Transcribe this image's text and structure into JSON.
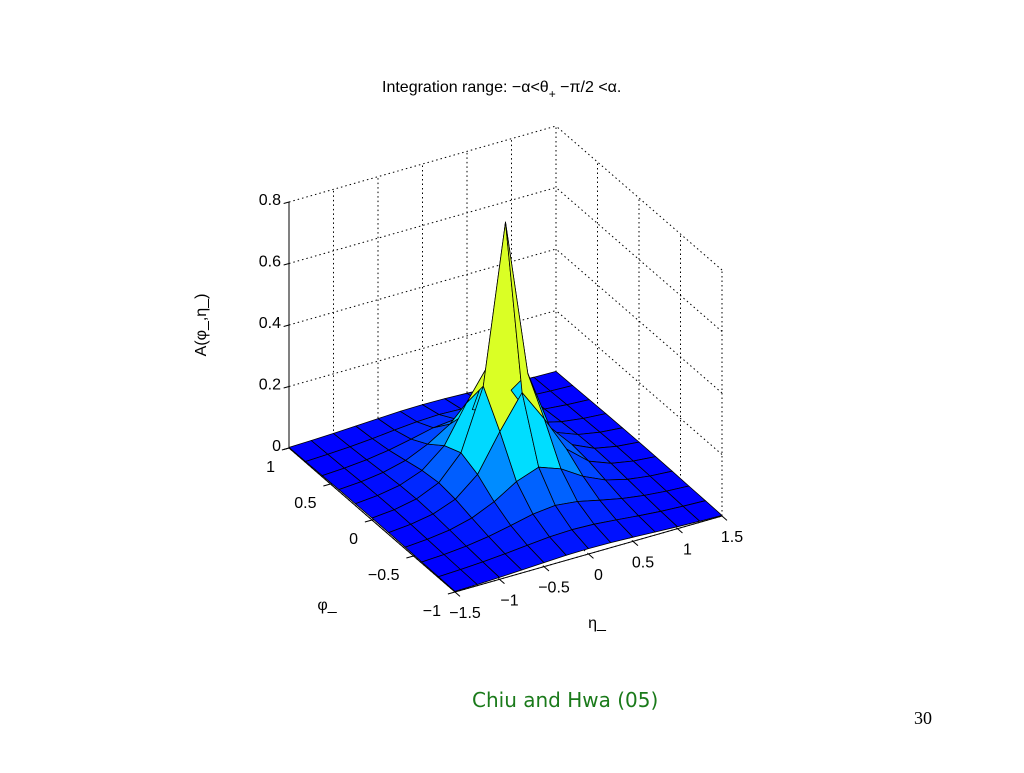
{
  "slide": {
    "caption": "Chiu and Hwa (05)",
    "page_number": "30"
  },
  "chart_data": {
    "type": "surface3d",
    "title": "Integration range: −α<θ",
    "title_sub": "+",
    "title_tail": " −π/2 <α.",
    "xlabel": "η_",
    "ylabel": "φ_",
    "zlabel": "A(φ_,η_)",
    "xlim": [
      -1.5,
      1.5
    ],
    "ylim": [
      -1,
      1
    ],
    "zlim": [
      0,
      0.8
    ],
    "x_ticks": [
      "−1.5",
      "−1",
      "−0.5",
      "0",
      "0.5",
      "1",
      "1.5"
    ],
    "y_ticks": [
      "−1",
      "−0.5",
      "0",
      "0.5",
      "1"
    ],
    "z_ticks": [
      "0",
      "0.2",
      "0.4",
      "0.6",
      "0.8"
    ],
    "grid": true,
    "colormap": "jet",
    "peak": {
      "x": 0,
      "y": 0,
      "z": 0.82
    },
    "x_grid": [
      -1.5,
      -1.25,
      -1.0,
      -0.75,
      -0.5,
      -0.25,
      0.0,
      0.25,
      0.5,
      0.75,
      1.0,
      1.25,
      1.5
    ],
    "y_grid": [
      -1.0,
      -0.8,
      -0.6,
      -0.4,
      -0.2,
      0.0,
      0.2,
      0.4,
      0.6,
      0.8,
      1.0
    ],
    "colors": {
      "caption": "#1a7a1a",
      "edge": "#000000"
    }
  }
}
